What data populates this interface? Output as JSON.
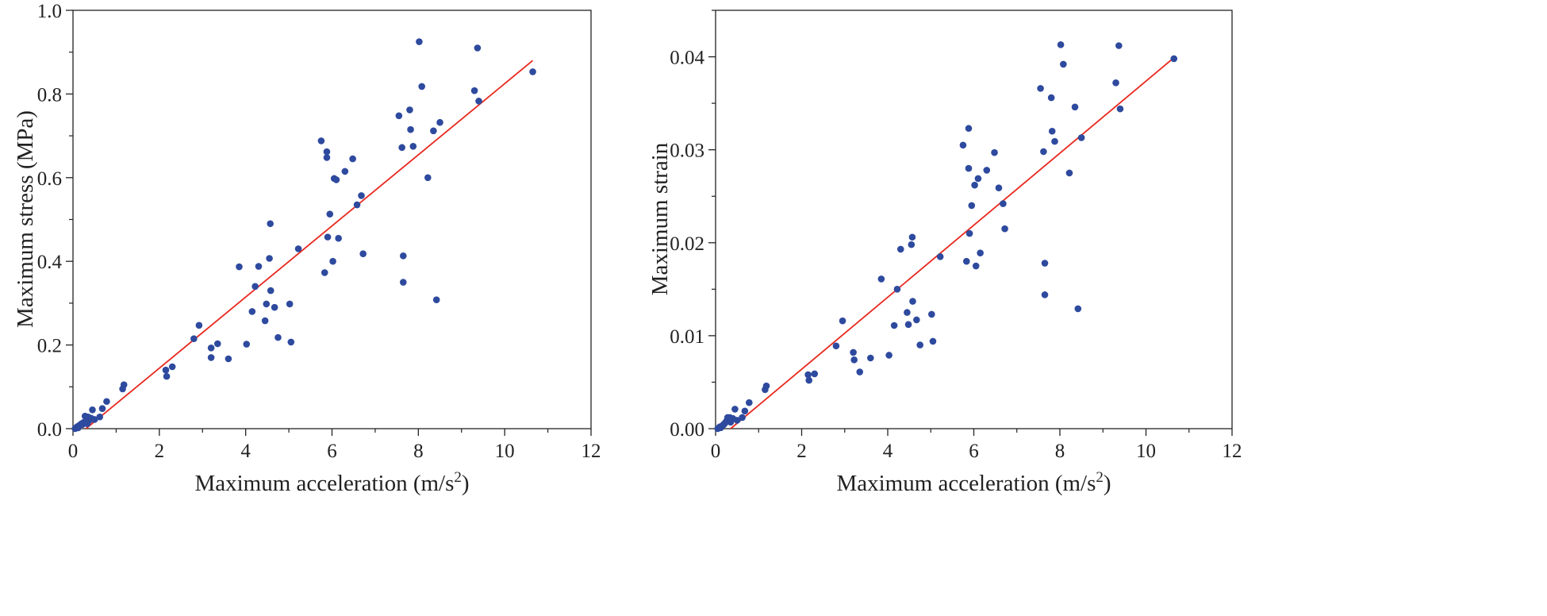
{
  "chart_data": [
    {
      "type": "scatter",
      "title": "",
      "xlabel": "Maximum acceleration (m/s",
      "xlabel_sup": "2",
      "xlabel_end": ")",
      "ylabel": "Maximum stress (MPa)",
      "xlim": [
        0,
        12
      ],
      "ylim": [
        0,
        1.0
      ],
      "xticks": [
        "0",
        "2",
        "4",
        "6",
        "8",
        "10",
        "12"
      ],
      "yticks": [
        "0.0",
        "0.2",
        "0.4",
        "0.6",
        "0.8",
        "1.0"
      ],
      "point_color": "#2e4a9e",
      "fit_color": "#e8291f",
      "fit_line": {
        "x": [
          0.3,
          10.65
        ],
        "y": [
          0.0,
          0.88
        ]
      },
      "points": [
        [
          0.05,
          0.0
        ],
        [
          0.08,
          0.003
        ],
        [
          0.1,
          0.005
        ],
        [
          0.12,
          0.002
        ],
        [
          0.15,
          0.008
        ],
        [
          0.18,
          0.01
        ],
        [
          0.2,
          0.012
        ],
        [
          0.22,
          0.01
        ],
        [
          0.25,
          0.015
        ],
        [
          0.28,
          0.03
        ],
        [
          0.3,
          0.018
        ],
        [
          0.33,
          0.012
        ],
        [
          0.35,
          0.028
        ],
        [
          0.38,
          0.02
        ],
        [
          0.42,
          0.025
        ],
        [
          0.45,
          0.045
        ],
        [
          0.5,
          0.022
        ],
        [
          0.62,
          0.028
        ],
        [
          0.68,
          0.048
        ],
        [
          0.78,
          0.065
        ],
        [
          1.15,
          0.095
        ],
        [
          1.18,
          0.105
        ],
        [
          2.15,
          0.14
        ],
        [
          2.17,
          0.125
        ],
        [
          2.3,
          0.148
        ],
        [
          2.8,
          0.215
        ],
        [
          2.92,
          0.247
        ],
        [
          3.2,
          0.193
        ],
        [
          3.2,
          0.17
        ],
        [
          3.35,
          0.203
        ],
        [
          3.6,
          0.167
        ],
        [
          3.85,
          0.387
        ],
        [
          4.02,
          0.202
        ],
        [
          4.15,
          0.28
        ],
        [
          4.22,
          0.34
        ],
        [
          4.3,
          0.388
        ],
        [
          4.45,
          0.258
        ],
        [
          4.48,
          0.298
        ],
        [
          4.55,
          0.407
        ],
        [
          4.57,
          0.49
        ],
        [
          4.58,
          0.33
        ],
        [
          4.67,
          0.29
        ],
        [
          4.75,
          0.218
        ],
        [
          5.02,
          0.298
        ],
        [
          5.05,
          0.207
        ],
        [
          5.22,
          0.43
        ],
        [
          5.75,
          0.688
        ],
        [
          5.83,
          0.373
        ],
        [
          5.88,
          0.662
        ],
        [
          5.88,
          0.648
        ],
        [
          5.9,
          0.458
        ],
        [
          5.95,
          0.513
        ],
        [
          6.02,
          0.4
        ],
        [
          6.05,
          0.598
        ],
        [
          6.1,
          0.595
        ],
        [
          6.15,
          0.455
        ],
        [
          6.3,
          0.615
        ],
        [
          6.48,
          0.645
        ],
        [
          6.58,
          0.535
        ],
        [
          6.68,
          0.557
        ],
        [
          6.72,
          0.418
        ],
        [
          7.55,
          0.748
        ],
        [
          7.62,
          0.672
        ],
        [
          7.65,
          0.413
        ],
        [
          7.65,
          0.35
        ],
        [
          7.8,
          0.762
        ],
        [
          7.82,
          0.715
        ],
        [
          7.88,
          0.675
        ],
        [
          8.02,
          0.925
        ],
        [
          8.08,
          0.818
        ],
        [
          8.22,
          0.6
        ],
        [
          8.35,
          0.712
        ],
        [
          8.42,
          0.308
        ],
        [
          8.5,
          0.732
        ],
        [
          9.3,
          0.808
        ],
        [
          9.37,
          0.91
        ],
        [
          9.4,
          0.783
        ],
        [
          10.65,
          0.853
        ]
      ]
    },
    {
      "type": "scatter",
      "title": "",
      "xlabel": "Maximum acceleration (m/s",
      "xlabel_sup": "2",
      "xlabel_end": ")",
      "ylabel": "Maximum strain",
      "xlim": [
        0,
        12
      ],
      "ylim": [
        0,
        0.045
      ],
      "xticks": [
        "0",
        "2",
        "4",
        "6",
        "8",
        "10",
        "12"
      ],
      "yticks": [
        "0.00",
        "0.01",
        "0.02",
        "0.03",
        "0.04"
      ],
      "ytick_values": [
        0,
        0.01,
        0.02,
        0.03,
        0.04
      ],
      "point_color": "#2e4a9e",
      "fit_color": "#e8291f",
      "fit_line": {
        "x": [
          0.35,
          10.65
        ],
        "y": [
          0.0,
          0.0399
        ]
      },
      "points": [
        [
          0.05,
          0.0
        ],
        [
          0.08,
          0.0001
        ],
        [
          0.1,
          0.0002
        ],
        [
          0.12,
          0.0001
        ],
        [
          0.15,
          0.0003
        ],
        [
          0.18,
          0.0004
        ],
        [
          0.2,
          0.0005
        ],
        [
          0.22,
          0.0006
        ],
        [
          0.25,
          0.0008
        ],
        [
          0.28,
          0.0012
        ],
        [
          0.3,
          0.0009
        ],
        [
          0.33,
          0.0012
        ],
        [
          0.35,
          0.0007
        ],
        [
          0.4,
          0.0011
        ],
        [
          0.45,
          0.0021
        ],
        [
          0.5,
          0.0009
        ],
        [
          0.62,
          0.0012
        ],
        [
          0.68,
          0.0019
        ],
        [
          0.78,
          0.0028
        ],
        [
          1.15,
          0.0042
        ],
        [
          1.18,
          0.0046
        ],
        [
          2.15,
          0.0058
        ],
        [
          2.17,
          0.0052
        ],
        [
          2.3,
          0.0059
        ],
        [
          2.8,
          0.0089
        ],
        [
          2.95,
          0.0116
        ],
        [
          3.2,
          0.0082
        ],
        [
          3.22,
          0.0074
        ],
        [
          3.35,
          0.0061
        ],
        [
          3.6,
          0.0076
        ],
        [
          3.85,
          0.0161
        ],
        [
          4.03,
          0.0079
        ],
        [
          4.15,
          0.0111
        ],
        [
          4.22,
          0.015
        ],
        [
          4.3,
          0.0193
        ],
        [
          4.45,
          0.0125
        ],
        [
          4.48,
          0.0112
        ],
        [
          4.55,
          0.0198
        ],
        [
          4.57,
          0.0206
        ],
        [
          4.58,
          0.0137
        ],
        [
          4.67,
          0.0117
        ],
        [
          4.75,
          0.009
        ],
        [
          5.02,
          0.0123
        ],
        [
          5.05,
          0.0094
        ],
        [
          5.22,
          0.0185
        ],
        [
          5.75,
          0.0305
        ],
        [
          5.83,
          0.018
        ],
        [
          5.88,
          0.028
        ],
        [
          5.88,
          0.0323
        ],
        [
          5.9,
          0.021
        ],
        [
          5.95,
          0.024
        ],
        [
          6.02,
          0.0262
        ],
        [
          6.05,
          0.0175
        ],
        [
          6.1,
          0.0269
        ],
        [
          6.15,
          0.0189
        ],
        [
          6.3,
          0.0278
        ],
        [
          6.48,
          0.0297
        ],
        [
          6.58,
          0.0259
        ],
        [
          6.68,
          0.0242
        ],
        [
          6.72,
          0.0215
        ],
        [
          7.55,
          0.0366
        ],
        [
          7.62,
          0.0298
        ],
        [
          7.65,
          0.0178
        ],
        [
          7.65,
          0.0144
        ],
        [
          7.8,
          0.0356
        ],
        [
          7.82,
          0.032
        ],
        [
          7.88,
          0.0309
        ],
        [
          8.02,
          0.0413
        ],
        [
          8.08,
          0.0392
        ],
        [
          8.22,
          0.0275
        ],
        [
          8.35,
          0.0346
        ],
        [
          8.42,
          0.0129
        ],
        [
          8.5,
          0.0313
        ],
        [
          9.3,
          0.0372
        ],
        [
          9.37,
          0.0412
        ],
        [
          9.4,
          0.0344
        ],
        [
          10.65,
          0.0398
        ]
      ]
    }
  ]
}
